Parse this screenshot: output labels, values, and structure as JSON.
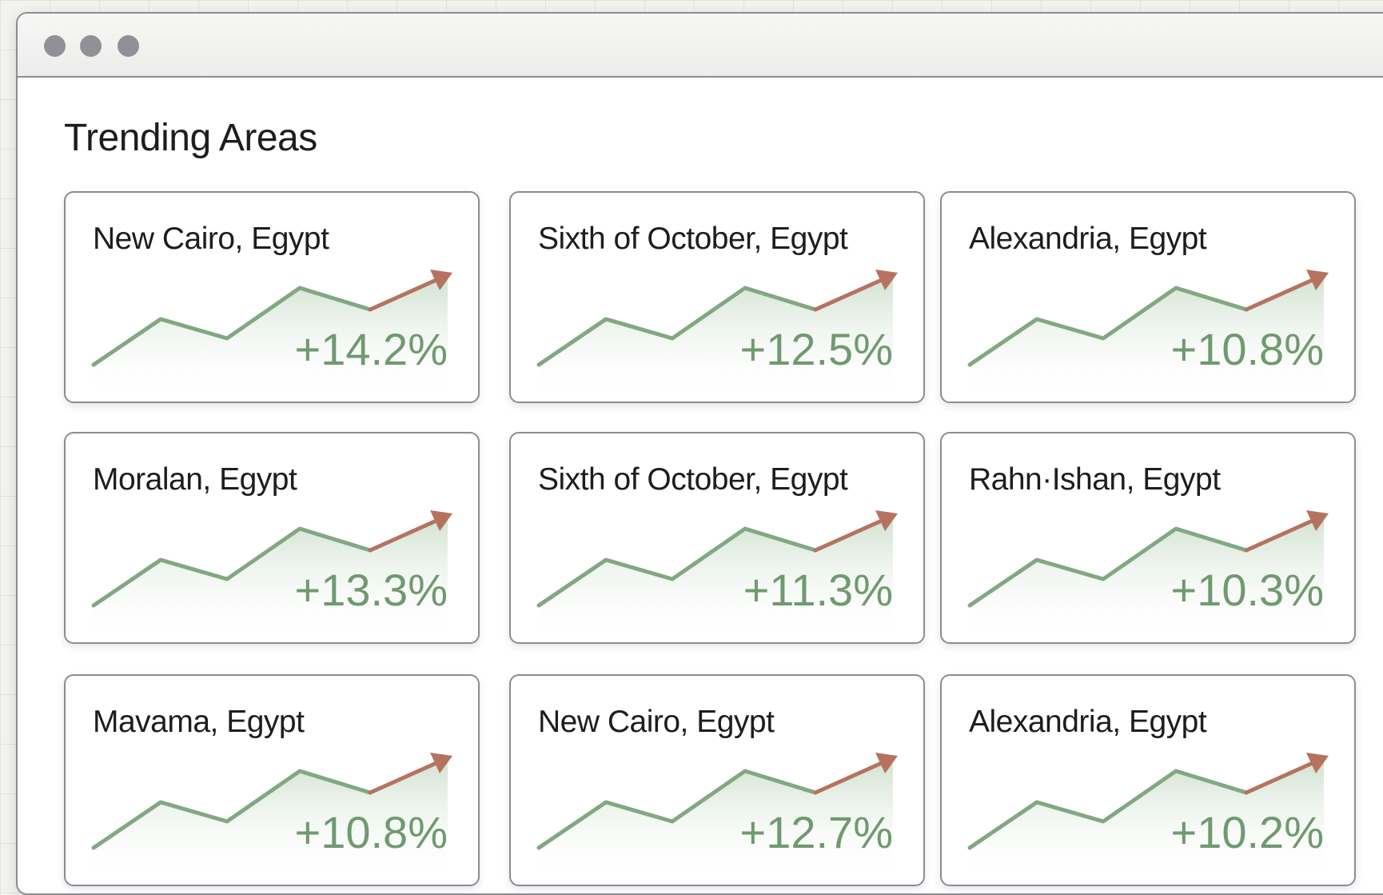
{
  "header": {
    "title": "Trending Areas"
  },
  "cards": [
    {
      "name": "New Cairo, Egypt",
      "change": "+14.2%"
    },
    {
      "name": "Sixth of October, Egypt",
      "change": "+12.5%"
    },
    {
      "name": "Alexandria, Egypt",
      "change": "+10.8%"
    },
    {
      "name": "Moralan, Egypt",
      "change": "+13.3%"
    },
    {
      "name": "Sixth of October, Egypt",
      "change": "+11.3%"
    },
    {
      "name": "Rahn·Ishan, Egypt",
      "change": "+10.3%"
    },
    {
      "name": "Mavama, Egypt",
      "change": "+10.8%"
    },
    {
      "name": "New Cairo, Egypt",
      "change": "+12.7%"
    },
    {
      "name": "Alexandria, Egypt",
      "change": "+10.2%"
    }
  ]
}
